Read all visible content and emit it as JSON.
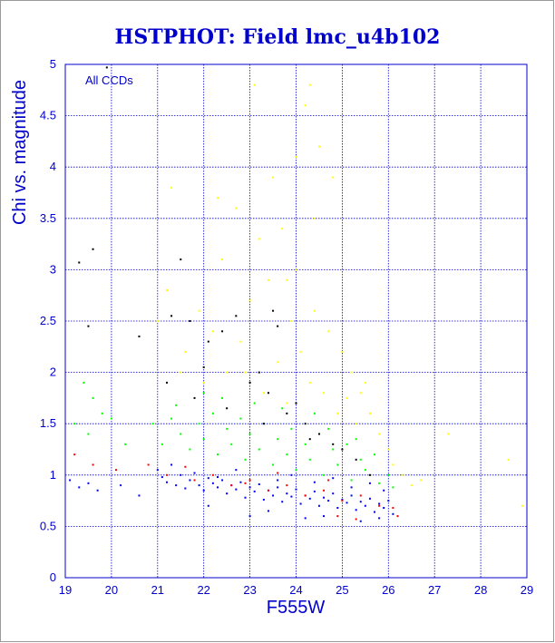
{
  "chart_data": {
    "type": "scatter",
    "title": "HSTPHOT: Field lmc_u4b102",
    "xlabel": "F555W",
    "ylabel": "Chi vs. magnitude",
    "annotation": "All CCDs",
    "xlim": [
      19,
      29
    ],
    "ylim": [
      0,
      5
    ],
    "xticks": [
      "19",
      "20",
      "21",
      "22",
      "23",
      "24",
      "25",
      "26",
      "27",
      "28",
      "29"
    ],
    "yticks": [
      "0",
      "0.5",
      "1",
      "1.5",
      "2",
      "2.5",
      "3",
      "3.5",
      "4",
      "4.5",
      "5"
    ],
    "grid": true,
    "legend": "none",
    "series": [
      {
        "color": "#0000ff",
        "points": [
          [
            19.1,
            0.95
          ],
          [
            19.3,
            0.88
          ],
          [
            19.5,
            0.92
          ],
          [
            19.7,
            0.85
          ],
          [
            20.2,
            0.9
          ],
          [
            20.6,
            0.8
          ],
          [
            21.0,
            1.05
          ],
          [
            21.1,
            0.98
          ],
          [
            21.2,
            0.93
          ],
          [
            21.4,
            0.9
          ],
          [
            21.5,
            1.0
          ],
          [
            21.6,
            0.87
          ],
          [
            21.7,
            0.95
          ],
          [
            21.8,
            1.02
          ],
          [
            21.9,
            0.9
          ],
          [
            22.0,
            0.85
          ],
          [
            22.1,
            0.97
          ],
          [
            22.2,
            0.92
          ],
          [
            22.3,
            0.88
          ],
          [
            22.4,
            0.95
          ],
          [
            22.5,
            0.82
          ],
          [
            22.6,
            0.9
          ],
          [
            22.7,
            0.86
          ],
          [
            22.8,
            0.93
          ],
          [
            22.9,
            0.78
          ],
          [
            23.0,
            0.88
          ],
          [
            23.1,
            0.84
          ],
          [
            23.2,
            0.91
          ],
          [
            23.3,
            0.76
          ],
          [
            23.4,
            0.85
          ],
          [
            23.5,
            0.8
          ],
          [
            23.6,
            0.88
          ],
          [
            23.7,
            0.74
          ],
          [
            23.8,
            0.82
          ],
          [
            23.9,
            0.79
          ],
          [
            24.0,
            0.86
          ],
          [
            24.1,
            0.72
          ],
          [
            24.2,
            0.8
          ],
          [
            24.3,
            0.77
          ],
          [
            24.4,
            0.84
          ],
          [
            24.5,
            0.7
          ],
          [
            24.6,
            0.78
          ],
          [
            24.7,
            0.75
          ],
          [
            24.8,
            0.82
          ],
          [
            24.9,
            0.68
          ],
          [
            25.0,
            0.76
          ],
          [
            25.1,
            0.73
          ],
          [
            25.2,
            0.8
          ],
          [
            25.3,
            0.66
          ],
          [
            25.4,
            0.74
          ],
          [
            25.5,
            0.7
          ],
          [
            25.6,
            0.77
          ],
          [
            25.7,
            0.64
          ],
          [
            25.8,
            0.72
          ],
          [
            25.9,
            0.68
          ],
          [
            26.0,
            0.75
          ],
          [
            26.1,
            0.62
          ],
          [
            22.3,
            0.98
          ],
          [
            23.6,
            0.95
          ],
          [
            24.4,
            0.93
          ],
          [
            25.2,
            0.88
          ],
          [
            25.9,
            0.85
          ],
          [
            23.0,
            0.6
          ],
          [
            24.2,
            0.58
          ],
          [
            25.4,
            0.55
          ],
          [
            21.3,
            1.1
          ],
          [
            22.7,
            1.05
          ],
          [
            23.9,
            1.0
          ],
          [
            24.8,
            0.97
          ],
          [
            25.6,
            0.92
          ],
          [
            22.1,
            0.7
          ],
          [
            23.4,
            0.65
          ],
          [
            24.6,
            0.6
          ],
          [
            25.8,
            0.58
          ]
        ]
      },
      {
        "color": "#00ff00",
        "points": [
          [
            19.2,
            1.5
          ],
          [
            19.4,
            1.9
          ],
          [
            19.5,
            1.4
          ],
          [
            19.8,
            1.6
          ],
          [
            20.3,
            1.3
          ],
          [
            20.9,
            1.5
          ],
          [
            21.1,
            1.3
          ],
          [
            21.3,
            1.55
          ],
          [
            21.5,
            1.4
          ],
          [
            21.7,
            1.25
          ],
          [
            21.9,
            1.5
          ],
          [
            22.0,
            1.35
          ],
          [
            22.2,
            1.6
          ],
          [
            22.3,
            1.2
          ],
          [
            22.5,
            1.45
          ],
          [
            22.6,
            1.3
          ],
          [
            22.8,
            1.55
          ],
          [
            22.9,
            1.15
          ],
          [
            23.0,
            1.4
          ],
          [
            23.2,
            1.25
          ],
          [
            23.3,
            1.5
          ],
          [
            23.5,
            1.1
          ],
          [
            23.6,
            1.35
          ],
          [
            23.8,
            1.2
          ],
          [
            23.9,
            1.45
          ],
          [
            24.0,
            1.05
          ],
          [
            24.2,
            1.3
          ],
          [
            24.3,
            1.15
          ],
          [
            24.5,
            1.4
          ],
          [
            24.6,
            1.0
          ],
          [
            24.8,
            1.25
          ],
          [
            24.9,
            1.1
          ],
          [
            25.1,
            1.3
          ],
          [
            25.2,
            0.95
          ],
          [
            25.4,
            1.15
          ],
          [
            25.5,
            1.05
          ],
          [
            25.7,
            1.2
          ],
          [
            25.8,
            0.92
          ],
          [
            26.0,
            1.0
          ],
          [
            26.1,
            0.88
          ],
          [
            22.4,
            1.75
          ],
          [
            23.1,
            1.7
          ],
          [
            23.7,
            1.65
          ],
          [
            24.4,
            1.6
          ],
          [
            22.0,
            1.8
          ],
          [
            19.6,
            1.75
          ],
          [
            20.0,
            1.55
          ],
          [
            21.4,
            1.68
          ],
          [
            24.7,
            1.45
          ],
          [
            25.3,
            1.35
          ]
        ]
      },
      {
        "color": "#ff0000",
        "points": [
          [
            19.2,
            1.2
          ],
          [
            19.6,
            1.1
          ],
          [
            20.1,
            1.05
          ],
          [
            20.8,
            1.1
          ],
          [
            21.2,
            1.0
          ],
          [
            21.8,
            0.95
          ],
          [
            22.2,
            1.0
          ],
          [
            22.6,
            0.9
          ],
          [
            23.0,
            0.95
          ],
          [
            23.4,
            0.85
          ],
          [
            23.8,
            0.9
          ],
          [
            24.2,
            0.8
          ],
          [
            24.6,
            0.85
          ],
          [
            25.0,
            0.75
          ],
          [
            25.4,
            0.8
          ],
          [
            25.8,
            0.7
          ],
          [
            26.1,
            0.68
          ],
          [
            26.2,
            0.6
          ],
          [
            25.3,
            0.57
          ],
          [
            24.9,
            0.6
          ],
          [
            22.9,
            0.92
          ],
          [
            21.6,
            1.08
          ],
          [
            23.6,
            1.02
          ],
          [
            24.7,
            0.95
          ]
        ]
      },
      {
        "color": "#ffff00",
        "points": [
          [
            21.0,
            2.5
          ],
          [
            21.2,
            2.8
          ],
          [
            21.3,
            3.8
          ],
          [
            21.6,
            2.2
          ],
          [
            21.9,
            2.6
          ],
          [
            22.0,
            1.9
          ],
          [
            22.2,
            2.4
          ],
          [
            22.4,
            3.1
          ],
          [
            22.5,
            2.0
          ],
          [
            22.7,
            3.6
          ],
          [
            22.8,
            2.3
          ],
          [
            23.0,
            2.7
          ],
          [
            23.1,
            4.8
          ],
          [
            23.2,
            3.3
          ],
          [
            23.3,
            1.8
          ],
          [
            23.4,
            2.9
          ],
          [
            23.5,
            3.9
          ],
          [
            23.6,
            2.1
          ],
          [
            23.7,
            3.4
          ],
          [
            23.8,
            1.7
          ],
          [
            23.9,
            2.5
          ],
          [
            24.0,
            3.0
          ],
          [
            24.1,
            2.2
          ],
          [
            24.2,
            4.6
          ],
          [
            24.3,
            4.8
          ],
          [
            24.3,
            1.9
          ],
          [
            24.4,
            2.6
          ],
          [
            24.5,
            4.2
          ],
          [
            24.6,
            1.8
          ],
          [
            24.7,
            2.4
          ],
          [
            24.8,
            3.9
          ],
          [
            24.9,
            1.6
          ],
          [
            25.0,
            2.2
          ],
          [
            25.1,
            1.75
          ],
          [
            25.2,
            2.0
          ],
          [
            25.3,
            1.5
          ],
          [
            25.4,
            1.8
          ],
          [
            25.6,
            1.6
          ],
          [
            25.8,
            1.4
          ],
          [
            26.0,
            1.25
          ],
          [
            26.1,
            1.1
          ],
          [
            26.3,
            1.0
          ],
          [
            26.5,
            0.9
          ],
          [
            26.7,
            0.95
          ],
          [
            27.3,
            1.4
          ],
          [
            28.6,
            1.15
          ],
          [
            28.9,
            0.7
          ],
          [
            22.3,
            3.7
          ],
          [
            23.8,
            2.9
          ],
          [
            24.4,
            3.5
          ],
          [
            24.0,
            4.1
          ],
          [
            21.5,
            2.0
          ],
          [
            22.9,
            2.0
          ],
          [
            25.5,
            1.9
          ]
        ]
      },
      {
        "color": "#000000",
        "points": [
          [
            19.3,
            3.07
          ],
          [
            19.6,
            3.2
          ],
          [
            19.9,
            4.97
          ],
          [
            19.5,
            2.45
          ],
          [
            20.6,
            2.35
          ],
          [
            21.2,
            1.9
          ],
          [
            21.3,
            2.55
          ],
          [
            21.5,
            3.1
          ],
          [
            21.7,
            2.5
          ],
          [
            22.0,
            2.05
          ],
          [
            22.4,
            2.4
          ],
          [
            22.7,
            2.55
          ],
          [
            23.0,
            1.9
          ],
          [
            23.2,
            2.0
          ],
          [
            23.4,
            1.8
          ],
          [
            23.6,
            2.45
          ],
          [
            23.8,
            1.6
          ],
          [
            24.0,
            1.7
          ],
          [
            24.2,
            1.5
          ],
          [
            24.5,
            1.4
          ],
          [
            24.8,
            1.3
          ],
          [
            25.0,
            1.25
          ],
          [
            25.3,
            1.15
          ],
          [
            25.6,
            1.0
          ],
          [
            21.8,
            1.75
          ],
          [
            22.5,
            1.65
          ],
          [
            23.3,
            1.5
          ],
          [
            24.3,
            1.35
          ],
          [
            23.5,
            2.6
          ],
          [
            22.1,
            2.3
          ]
        ]
      }
    ]
  }
}
